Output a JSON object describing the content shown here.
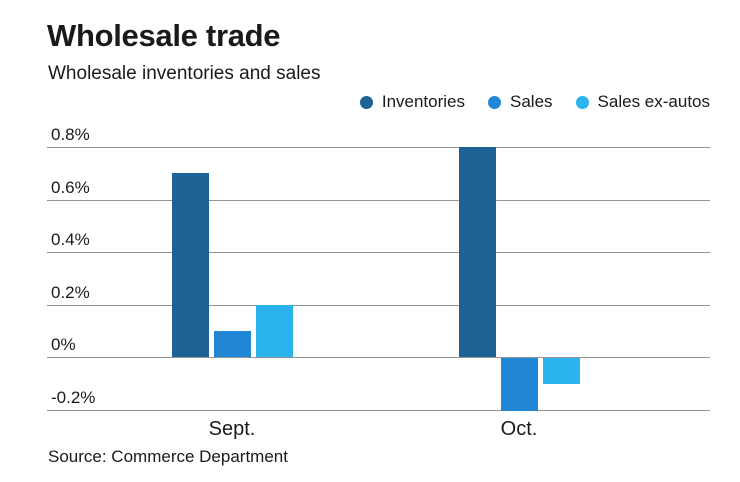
{
  "header": {
    "title": "Wholesale trade",
    "subtitle": "Wholesale inventories and sales"
  },
  "chart_data": {
    "type": "bar",
    "title": "Wholesale trade",
    "subtitle": "Wholesale inventories and sales",
    "unit": "%",
    "categories": [
      "Sept.",
      "Oct."
    ],
    "series": [
      {
        "name": "Inventories",
        "color": "#1d6396",
        "values": [
          0.7,
          0.8
        ]
      },
      {
        "name": "Sales",
        "color": "#2186d3",
        "values": [
          0.1,
          -0.2
        ]
      },
      {
        "name": "Sales ex-autos",
        "color": "#2bb3ee",
        "values": [
          0.2,
          -0.1
        ]
      }
    ],
    "yticks": [
      {
        "value": 0.8,
        "label": "0.8%"
      },
      {
        "value": 0.6,
        "label": "0.6%"
      },
      {
        "value": 0.4,
        "label": "0.4%"
      },
      {
        "value": 0.2,
        "label": "0.2%"
      },
      {
        "value": 0.0,
        "label": "0%"
      },
      {
        "value": -0.2,
        "label": "-0.2%"
      }
    ],
    "ylim": [
      -0.28,
      0.86
    ],
    "grid": true,
    "legend_position": "top-right"
  },
  "footer": {
    "source": "Source: Commerce Department"
  },
  "colors": {
    "background": "#ffffff",
    "gridline": "#949494",
    "text": "#1a1a1a"
  }
}
